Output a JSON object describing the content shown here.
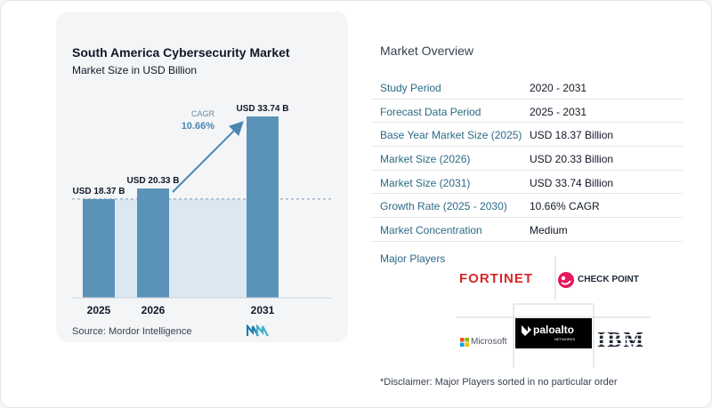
{
  "chart_data": {
    "type": "bar",
    "title": "South America Cybersecurity Market",
    "subtitle": "Market Size in USD Billion",
    "categories": [
      "2025",
      "2026",
      "2031"
    ],
    "values": [
      18.37,
      20.33,
      33.74
    ],
    "data_labels": [
      "USD 18.37 B",
      "USD 20.33 B",
      "USD 33.74 B"
    ],
    "cagr_label": "CAGR",
    "cagr_value": "10.66%",
    "ylim": [
      0,
      35
    ],
    "grid": false,
    "bar_color": "#5b93b8",
    "shade_color": "#dbe7f1",
    "accent_color": "#4a86b0"
  },
  "source": "Source:  Mordor Intelligence",
  "overview": {
    "title": "Market Overview",
    "rows": [
      {
        "label": "Study Period",
        "value": "2020 - 2031"
      },
      {
        "label": "Forecast Data Period",
        "value": "2025 - 2031"
      },
      {
        "label": "Base Year Market Size (2025)",
        "value": "USD 18.37 Billion"
      },
      {
        "label": "Market Size (2026)",
        "value": "USD 20.33 Billion"
      },
      {
        "label": "Market Size (2031)",
        "value": "USD 33.74 Billion"
      },
      {
        "label": "Growth Rate (2025 - 2030)",
        "value": "10.66% CAGR"
      },
      {
        "label": "Market Concentration",
        "value": "Medium"
      }
    ]
  },
  "players": {
    "title": "Major Players",
    "logos": {
      "fortinet": "FORTINET",
      "checkpoint": "CHECK POINT",
      "microsoft": "Microsoft",
      "paloalto": "paloalto",
      "paloalto_sub": "NETWORKS",
      "ibm": "IBM"
    }
  },
  "disclaimer": "*Disclaimer: Major Players sorted in no particular order",
  "colors": {
    "label_blue": "#2c6a87",
    "fortinet_red": "#d8262b",
    "checkpoint_pink": "#e8175d"
  },
  "icons": {
    "mordor_logo": "mordor-intelligence-logo",
    "cagr_arrow": "arrow-up-right-icon"
  }
}
